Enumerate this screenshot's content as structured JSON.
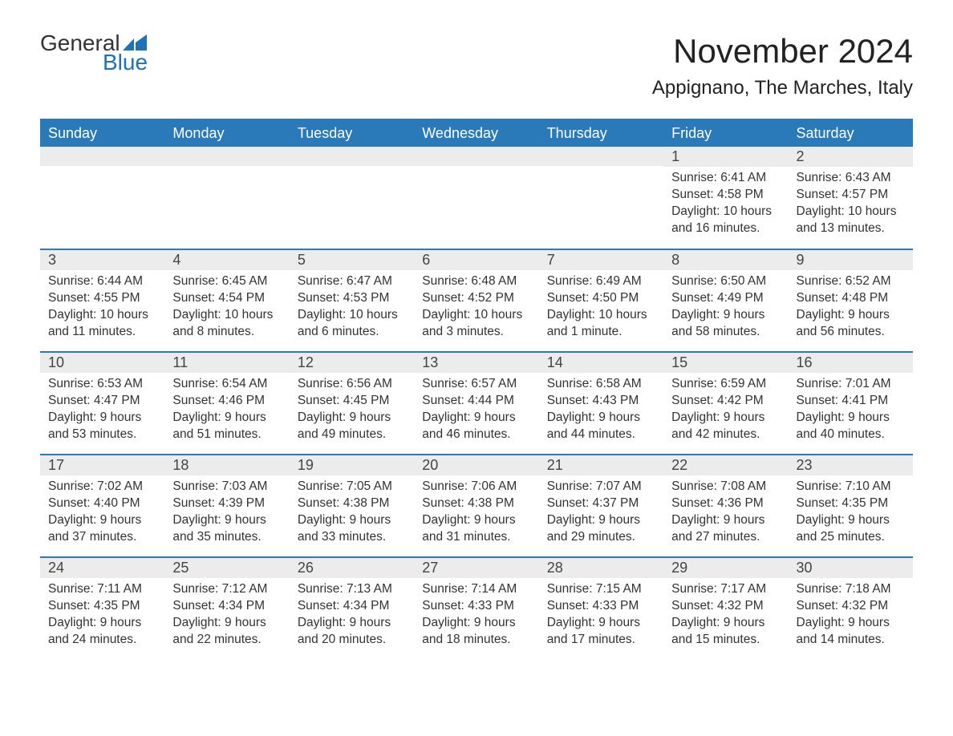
{
  "logo": {
    "word1": "General",
    "word2": "Blue",
    "text_color": "#333333",
    "accent_color": "#1f71b8"
  },
  "title": "November 2024",
  "location": "Appignano, The Marches, Italy",
  "colors": {
    "header_bg": "#2a7ab9",
    "header_text": "#ffffff",
    "row_divider": "#2a7ab9",
    "daynum_bg": "#ececec",
    "body_text": "#333333",
    "page_bg": "#ffffff"
  },
  "days_of_week": [
    "Sunday",
    "Monday",
    "Tuesday",
    "Wednesday",
    "Thursday",
    "Friday",
    "Saturday"
  ],
  "weeks": [
    [
      null,
      null,
      null,
      null,
      null,
      {
        "n": "1",
        "sunrise": "6:41 AM",
        "sunset": "4:58 PM",
        "daylight": "10 hours and 16 minutes."
      },
      {
        "n": "2",
        "sunrise": "6:43 AM",
        "sunset": "4:57 PM",
        "daylight": "10 hours and 13 minutes."
      }
    ],
    [
      {
        "n": "3",
        "sunrise": "6:44 AM",
        "sunset": "4:55 PM",
        "daylight": "10 hours and 11 minutes."
      },
      {
        "n": "4",
        "sunrise": "6:45 AM",
        "sunset": "4:54 PM",
        "daylight": "10 hours and 8 minutes."
      },
      {
        "n": "5",
        "sunrise": "6:47 AM",
        "sunset": "4:53 PM",
        "daylight": "10 hours and 6 minutes."
      },
      {
        "n": "6",
        "sunrise": "6:48 AM",
        "sunset": "4:52 PM",
        "daylight": "10 hours and 3 minutes."
      },
      {
        "n": "7",
        "sunrise": "6:49 AM",
        "sunset": "4:50 PM",
        "daylight": "10 hours and 1 minute."
      },
      {
        "n": "8",
        "sunrise": "6:50 AM",
        "sunset": "4:49 PM",
        "daylight": "9 hours and 58 minutes."
      },
      {
        "n": "9",
        "sunrise": "6:52 AM",
        "sunset": "4:48 PM",
        "daylight": "9 hours and 56 minutes."
      }
    ],
    [
      {
        "n": "10",
        "sunrise": "6:53 AM",
        "sunset": "4:47 PM",
        "daylight": "9 hours and 53 minutes."
      },
      {
        "n": "11",
        "sunrise": "6:54 AM",
        "sunset": "4:46 PM",
        "daylight": "9 hours and 51 minutes."
      },
      {
        "n": "12",
        "sunrise": "6:56 AM",
        "sunset": "4:45 PM",
        "daylight": "9 hours and 49 minutes."
      },
      {
        "n": "13",
        "sunrise": "6:57 AM",
        "sunset": "4:44 PM",
        "daylight": "9 hours and 46 minutes."
      },
      {
        "n": "14",
        "sunrise": "6:58 AM",
        "sunset": "4:43 PM",
        "daylight": "9 hours and 44 minutes."
      },
      {
        "n": "15",
        "sunrise": "6:59 AM",
        "sunset": "4:42 PM",
        "daylight": "9 hours and 42 minutes."
      },
      {
        "n": "16",
        "sunrise": "7:01 AM",
        "sunset": "4:41 PM",
        "daylight": "9 hours and 40 minutes."
      }
    ],
    [
      {
        "n": "17",
        "sunrise": "7:02 AM",
        "sunset": "4:40 PM",
        "daylight": "9 hours and 37 minutes."
      },
      {
        "n": "18",
        "sunrise": "7:03 AM",
        "sunset": "4:39 PM",
        "daylight": "9 hours and 35 minutes."
      },
      {
        "n": "19",
        "sunrise": "7:05 AM",
        "sunset": "4:38 PM",
        "daylight": "9 hours and 33 minutes."
      },
      {
        "n": "20",
        "sunrise": "7:06 AM",
        "sunset": "4:38 PM",
        "daylight": "9 hours and 31 minutes."
      },
      {
        "n": "21",
        "sunrise": "7:07 AM",
        "sunset": "4:37 PM",
        "daylight": "9 hours and 29 minutes."
      },
      {
        "n": "22",
        "sunrise": "7:08 AM",
        "sunset": "4:36 PM",
        "daylight": "9 hours and 27 minutes."
      },
      {
        "n": "23",
        "sunrise": "7:10 AM",
        "sunset": "4:35 PM",
        "daylight": "9 hours and 25 minutes."
      }
    ],
    [
      {
        "n": "24",
        "sunrise": "7:11 AM",
        "sunset": "4:35 PM",
        "daylight": "9 hours and 24 minutes."
      },
      {
        "n": "25",
        "sunrise": "7:12 AM",
        "sunset": "4:34 PM",
        "daylight": "9 hours and 22 minutes."
      },
      {
        "n": "26",
        "sunrise": "7:13 AM",
        "sunset": "4:34 PM",
        "daylight": "9 hours and 20 minutes."
      },
      {
        "n": "27",
        "sunrise": "7:14 AM",
        "sunset": "4:33 PM",
        "daylight": "9 hours and 18 minutes."
      },
      {
        "n": "28",
        "sunrise": "7:15 AM",
        "sunset": "4:33 PM",
        "daylight": "9 hours and 17 minutes."
      },
      {
        "n": "29",
        "sunrise": "7:17 AM",
        "sunset": "4:32 PM",
        "daylight": "9 hours and 15 minutes."
      },
      {
        "n": "30",
        "sunrise": "7:18 AM",
        "sunset": "4:32 PM",
        "daylight": "9 hours and 14 minutes."
      }
    ]
  ],
  "labels": {
    "sunrise": "Sunrise:",
    "sunset": "Sunset:",
    "daylight": "Daylight:"
  }
}
